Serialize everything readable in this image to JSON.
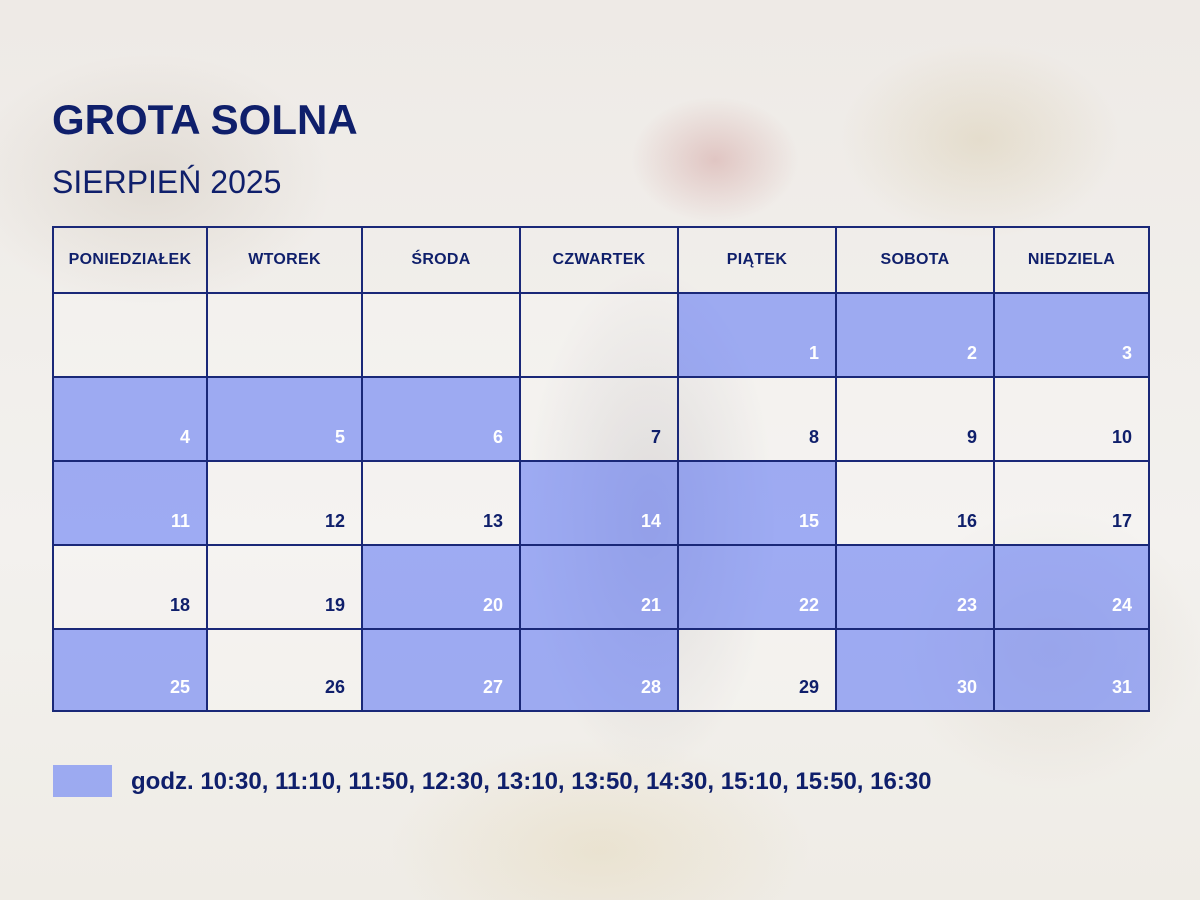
{
  "header": {
    "title": "GROTA SOLNA",
    "subtitle": "SIERPIEŃ 2025"
  },
  "calendar": {
    "weekdays": [
      "PONIEDZIAŁEK",
      "WTOREK",
      "ŚRODA",
      "CZWARTEK",
      "PIĄTEK",
      "SOBOTA",
      "NIEDZIELA"
    ],
    "first_weekday_index": 4,
    "days_in_month": 31,
    "highlighted_days": [
      1,
      2,
      3,
      4,
      5,
      6,
      11,
      14,
      15,
      20,
      21,
      22,
      23,
      24,
      25,
      27,
      28,
      30,
      31
    ]
  },
  "legend": {
    "text": "godz. 10:30, 11:10, 11:50, 12:30, 13:10, 13:50, 14:30, 15:10, 15:50, 16:30"
  },
  "colors": {
    "text": "#0f1f6b",
    "grid": "#1a2878",
    "highlight": "#6980f5"
  }
}
